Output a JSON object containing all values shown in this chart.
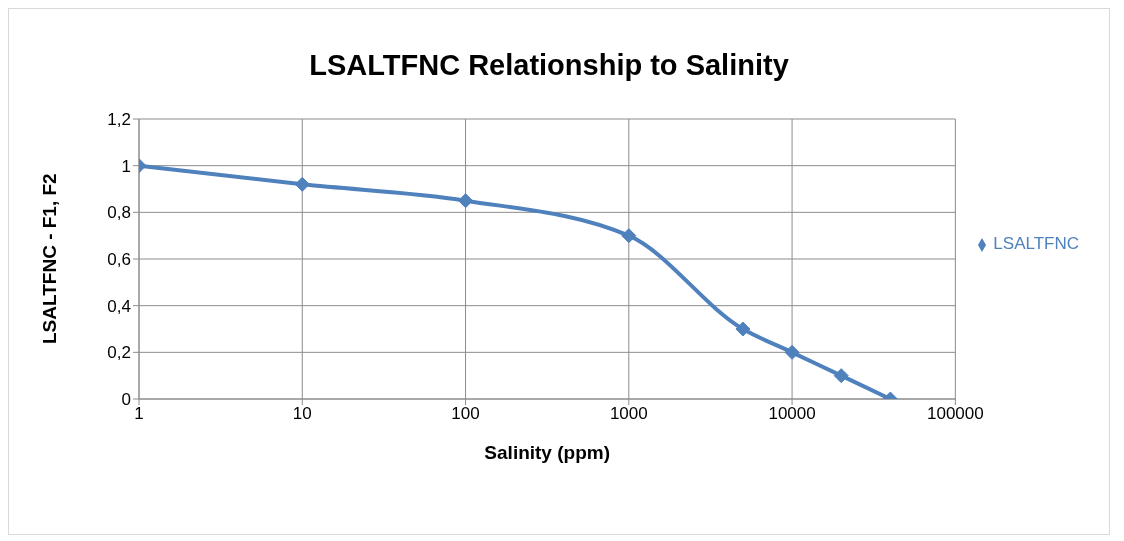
{
  "chart_data": {
    "type": "line",
    "title": "LSALTFNC Relationship to Salinity",
    "xlabel": "Salinity (ppm)",
    "ylabel": "LSALTFNC - F1, F2",
    "x": [
      1,
      10,
      100,
      1000,
      5000,
      10000,
      20000,
      40000
    ],
    "series": [
      {
        "name": "LSALTFNC",
        "color": "#4f81bd",
        "values": [
          1,
          0.92,
          0.85,
          0.7,
          0.3,
          0.2,
          0.1,
          0
        ]
      }
    ],
    "log": "x",
    "xlim": [
      1,
      100000
    ],
    "xticks": [
      1,
      10,
      100,
      1000,
      10000,
      100000
    ],
    "ylim": [
      0,
      1.2
    ],
    "yticks": [
      0,
      {
        "value": 0.2,
        "label": "0,2"
      },
      {
        "value": 0.4,
        "label": "0,4"
      },
      {
        "value": 0.6,
        "label": "0,6"
      },
      {
        "value": 0.8,
        "label": "0,8"
      },
      1,
      {
        "value": 1.2,
        "label": "1,2"
      }
    ],
    "grid": true,
    "legend": "right",
    "marker": "diamond",
    "line_style": "solid"
  }
}
